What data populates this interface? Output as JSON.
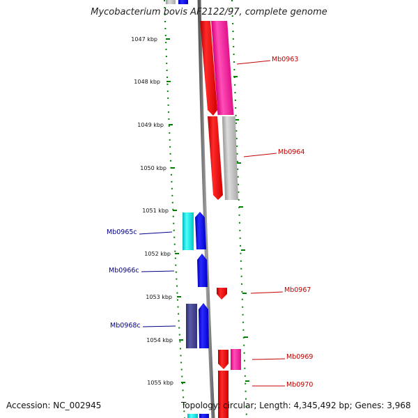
{
  "title": "Mycobacterium bovis AF2122/97, complete genome",
  "accession": "Accession: NC_002945",
  "summary": "Topology: circular; Length: 4,345,492 bp; Genes: 3,968",
  "ticks": [
    "1047 kbp",
    "1048 kbp",
    "1049 kbp",
    "1050 kbp",
    "1051 kbp",
    "1052 kbp",
    "1053 kbp",
    "1054 kbp",
    "1055 kbp"
  ],
  "genes": [
    {
      "label": "Mb0963",
      "strand": "forward",
      "color": "#ff1a9a"
    },
    {
      "label": "Mb0964",
      "strand": "forward",
      "color": "#bdbdbd"
    },
    {
      "label": "Mb0965c",
      "strand": "reverse",
      "color": "#00e5e5"
    },
    {
      "label": "Mb0966c",
      "strand": "reverse",
      "color": "#0000ff"
    },
    {
      "label": "Mb0967",
      "strand": "forward",
      "color": "#ff0000"
    },
    {
      "label": "Mb0968c",
      "strand": "reverse",
      "color": "#3c3c8c"
    },
    {
      "label": "Mb0969",
      "strand": "forward",
      "color": "#ff1a9a"
    },
    {
      "label": "Mb0970",
      "strand": "forward",
      "color": "#ff0000"
    }
  ],
  "colors": {
    "tick": "#008000",
    "backbone": "#888888",
    "forward_cds": "#ff0000",
    "reverse_cds": "#0000ff"
  }
}
